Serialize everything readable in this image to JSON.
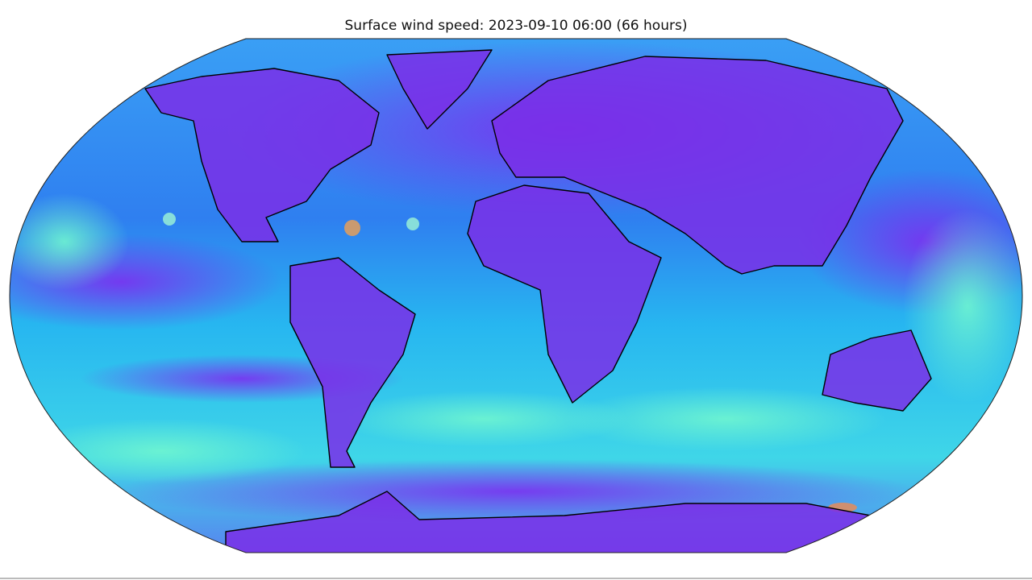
{
  "title": "Surface wind speed: 2023-09-10 06:00 (66 hours)"
}
